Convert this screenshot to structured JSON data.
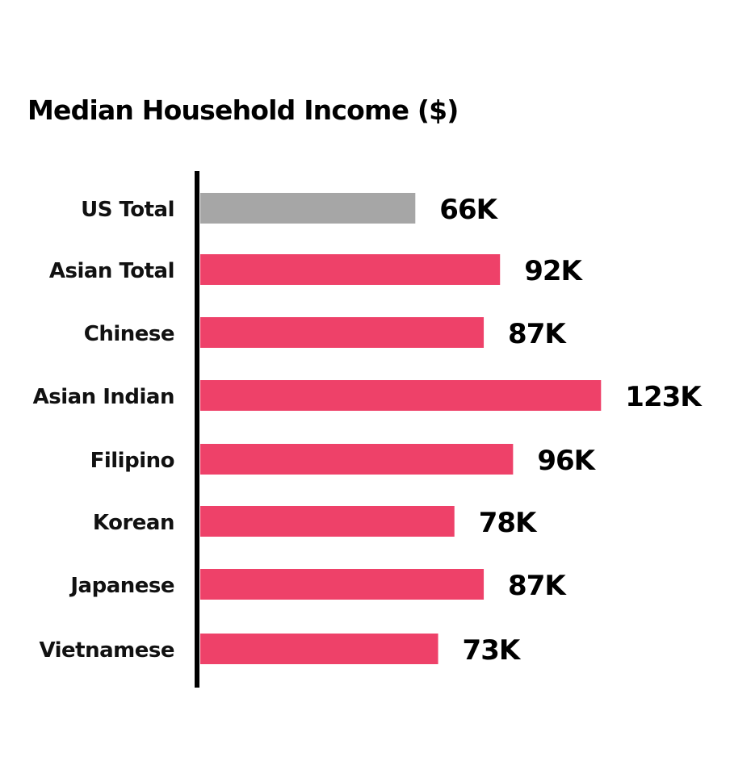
{
  "chart_data": {
    "type": "bar",
    "orientation": "horizontal",
    "title": "Median Household Income ($)",
    "categories": [
      "US Total",
      "Asian Total",
      "Chinese",
      "Asian Indian",
      "Filipino",
      "Korean",
      "Japanese",
      "Vietnamese"
    ],
    "values": [
      66,
      92,
      87,
      123,
      96,
      78,
      87,
      73
    ],
    "value_labels": [
      "66K",
      "92K",
      "87K",
      "123K",
      "96K",
      "78K",
      "87K",
      "73K"
    ],
    "bar_colors": [
      "#a6a6a6",
      "#ee4169",
      "#ee4169",
      "#ee4169",
      "#ee4169",
      "#ee4169",
      "#ee4169",
      "#ee4169"
    ],
    "axis_color": "#000000",
    "grid": false,
    "legend": "none"
  }
}
